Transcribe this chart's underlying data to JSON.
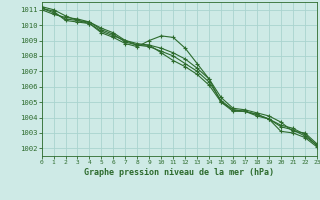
{
  "title": "Graphe pression niveau de la mer (hPa)",
  "bg_color": "#ceeae6",
  "grid_color": "#aad4cf",
  "line_color": "#2d6b2d",
  "xlim": [
    0,
    23
  ],
  "ylim": [
    1001.5,
    1011.5
  ],
  "yticks": [
    1002,
    1003,
    1004,
    1005,
    1006,
    1007,
    1008,
    1009,
    1010,
    1011
  ],
  "xticks": [
    0,
    1,
    2,
    3,
    4,
    5,
    6,
    7,
    8,
    9,
    10,
    11,
    12,
    13,
    14,
    15,
    16,
    17,
    18,
    19,
    20,
    21,
    22,
    23
  ],
  "series": [
    [
      1011.0,
      1010.7,
      1010.5,
      1010.4,
      1010.2,
      1009.8,
      1009.5,
      1009.0,
      1008.8,
      1008.7,
      1008.5,
      1008.2,
      1007.8,
      1007.2,
      1006.5,
      1005.3,
      1004.6,
      1004.5,
      1004.3,
      1004.1,
      1003.7,
      1003.1,
      1003.0,
      1002.3
    ],
    [
      1011.1,
      1010.8,
      1010.4,
      1010.3,
      1010.2,
      1009.7,
      1009.4,
      1008.9,
      1008.7,
      1008.6,
      1008.3,
      1008.0,
      1007.5,
      1007.0,
      1006.3,
      1005.1,
      1004.5,
      1004.4,
      1004.2,
      1003.9,
      1003.5,
      1003.3,
      1002.9,
      1002.2
    ],
    [
      1011.1,
      1010.9,
      1010.3,
      1010.2,
      1010.1,
      1009.6,
      1009.3,
      1009.0,
      1008.7,
      1008.7,
      1008.2,
      1007.7,
      1007.3,
      1006.8,
      1006.1,
      1005.0,
      1004.4,
      1004.4,
      1004.2,
      1003.9,
      1003.4,
      1003.2,
      1002.8,
      1002.2
    ],
    [
      1011.2,
      1011.0,
      1010.6,
      1010.3,
      1010.1,
      1009.5,
      1009.2,
      1008.8,
      1008.6,
      1009.0,
      1009.3,
      1009.2,
      1008.5,
      1007.5,
      1006.5,
      1005.0,
      1004.5,
      1004.4,
      1004.1,
      1003.9,
      1003.1,
      1003.0,
      1002.7,
      1002.1
    ]
  ],
  "ylabel_fontsize": 5.2,
  "xlabel_fontsize": 6.0,
  "xtick_fontsize": 4.5,
  "marker": "+",
  "marker_size": 3.5,
  "linewidth": 0.8
}
